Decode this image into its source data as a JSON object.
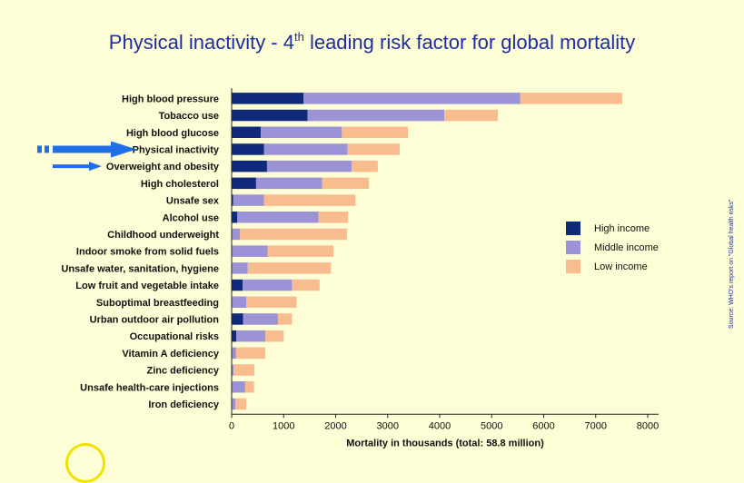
{
  "title_main": "Physical inactivity - 4",
  "title_sup": "th",
  "title_rest": " leading risk factor for global mortality",
  "source": "Source:  WHO's report on \"Global health risks\"",
  "chart_data": {
    "type": "bar",
    "orientation": "horizontal",
    "stacked": true,
    "categories": [
      "High blood pressure",
      "Tobacco use",
      "High blood glucose",
      "Physical inactivity",
      "Overweight and obesity",
      "High cholesterol",
      "Unsafe sex",
      "Alcohol use",
      "Childhood underweight",
      "Indoor smoke from solid fuels",
      "Unsafe water, sanitation, hygiene",
      "Low fruit and vegetable intake",
      "Suboptimal breastfeeding",
      "Urban outdoor air pollution",
      "Occupational risks",
      "Vitamin A deficiency",
      "Zinc deficiency",
      "Unsafe health-care injections",
      "Iron deficiency"
    ],
    "series": [
      {
        "name": "High income",
        "color": "#0f2a7a",
        "values": [
          1380,
          1460,
          560,
          620,
          680,
          470,
          30,
          110,
          10,
          10,
          10,
          210,
          10,
          220,
          90,
          5,
          5,
          10,
          10
        ]
      },
      {
        "name": "Middle income",
        "color": "#9b93d6",
        "values": [
          4170,
          2630,
          1560,
          1610,
          1630,
          1270,
          590,
          1560,
          150,
          680,
          300,
          950,
          270,
          670,
          560,
          80,
          30,
          250,
          60
        ]
      },
      {
        "name": "Low income",
        "color": "#f9bc8e",
        "values": [
          1960,
          1030,
          1270,
          1000,
          500,
          900,
          1760,
          570,
          2060,
          1270,
          1600,
          530,
          970,
          270,
          350,
          560,
          400,
          170,
          210
        ]
      }
    ],
    "xlabel": "Mortality in thousands (total: 58.8 million)",
    "ylabel": "",
    "xlim": [
      0,
      8000
    ],
    "xticks": [
      0,
      1000,
      2000,
      3000,
      4000,
      5000,
      6000,
      7000,
      8000
    ],
    "legend_position": "right",
    "highlighted_categories": [
      "Physical inactivity",
      "Overweight and obesity"
    ],
    "highlight_color": "#1f6fe8"
  }
}
